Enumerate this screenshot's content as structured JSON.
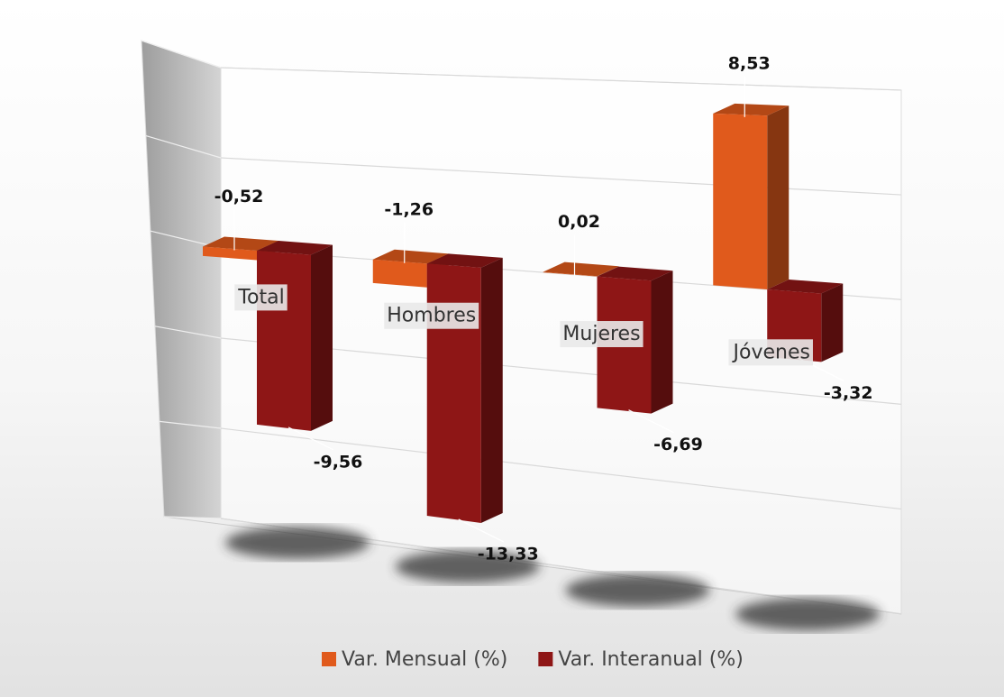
{
  "chart_data": {
    "type": "bar3d",
    "categories": [
      "Total",
      "Hombres",
      "Mujeres",
      "Jóvenes"
    ],
    "series": [
      {
        "name": "Var. Mensual (%)",
        "color": "#e05a1c",
        "values": [
          -0.52,
          -1.26,
          0.02,
          8.53
        ],
        "value_labels": [
          "-0,52",
          "-1,26",
          "0,02",
          "8,53"
        ]
      },
      {
        "name": "Var. Interanual (%)",
        "color": "#8e1616",
        "values": [
          -9.56,
          -13.33,
          -6.69,
          -3.32
        ],
        "value_labels": [
          "-9,56",
          "-13,33",
          "-6,69",
          "-3,32"
        ]
      }
    ],
    "ylim": [
      -15,
      10
    ],
    "yticks": [
      -15,
      -10,
      -5,
      0,
      5,
      10
    ],
    "grid": true,
    "legend": "bottom"
  }
}
